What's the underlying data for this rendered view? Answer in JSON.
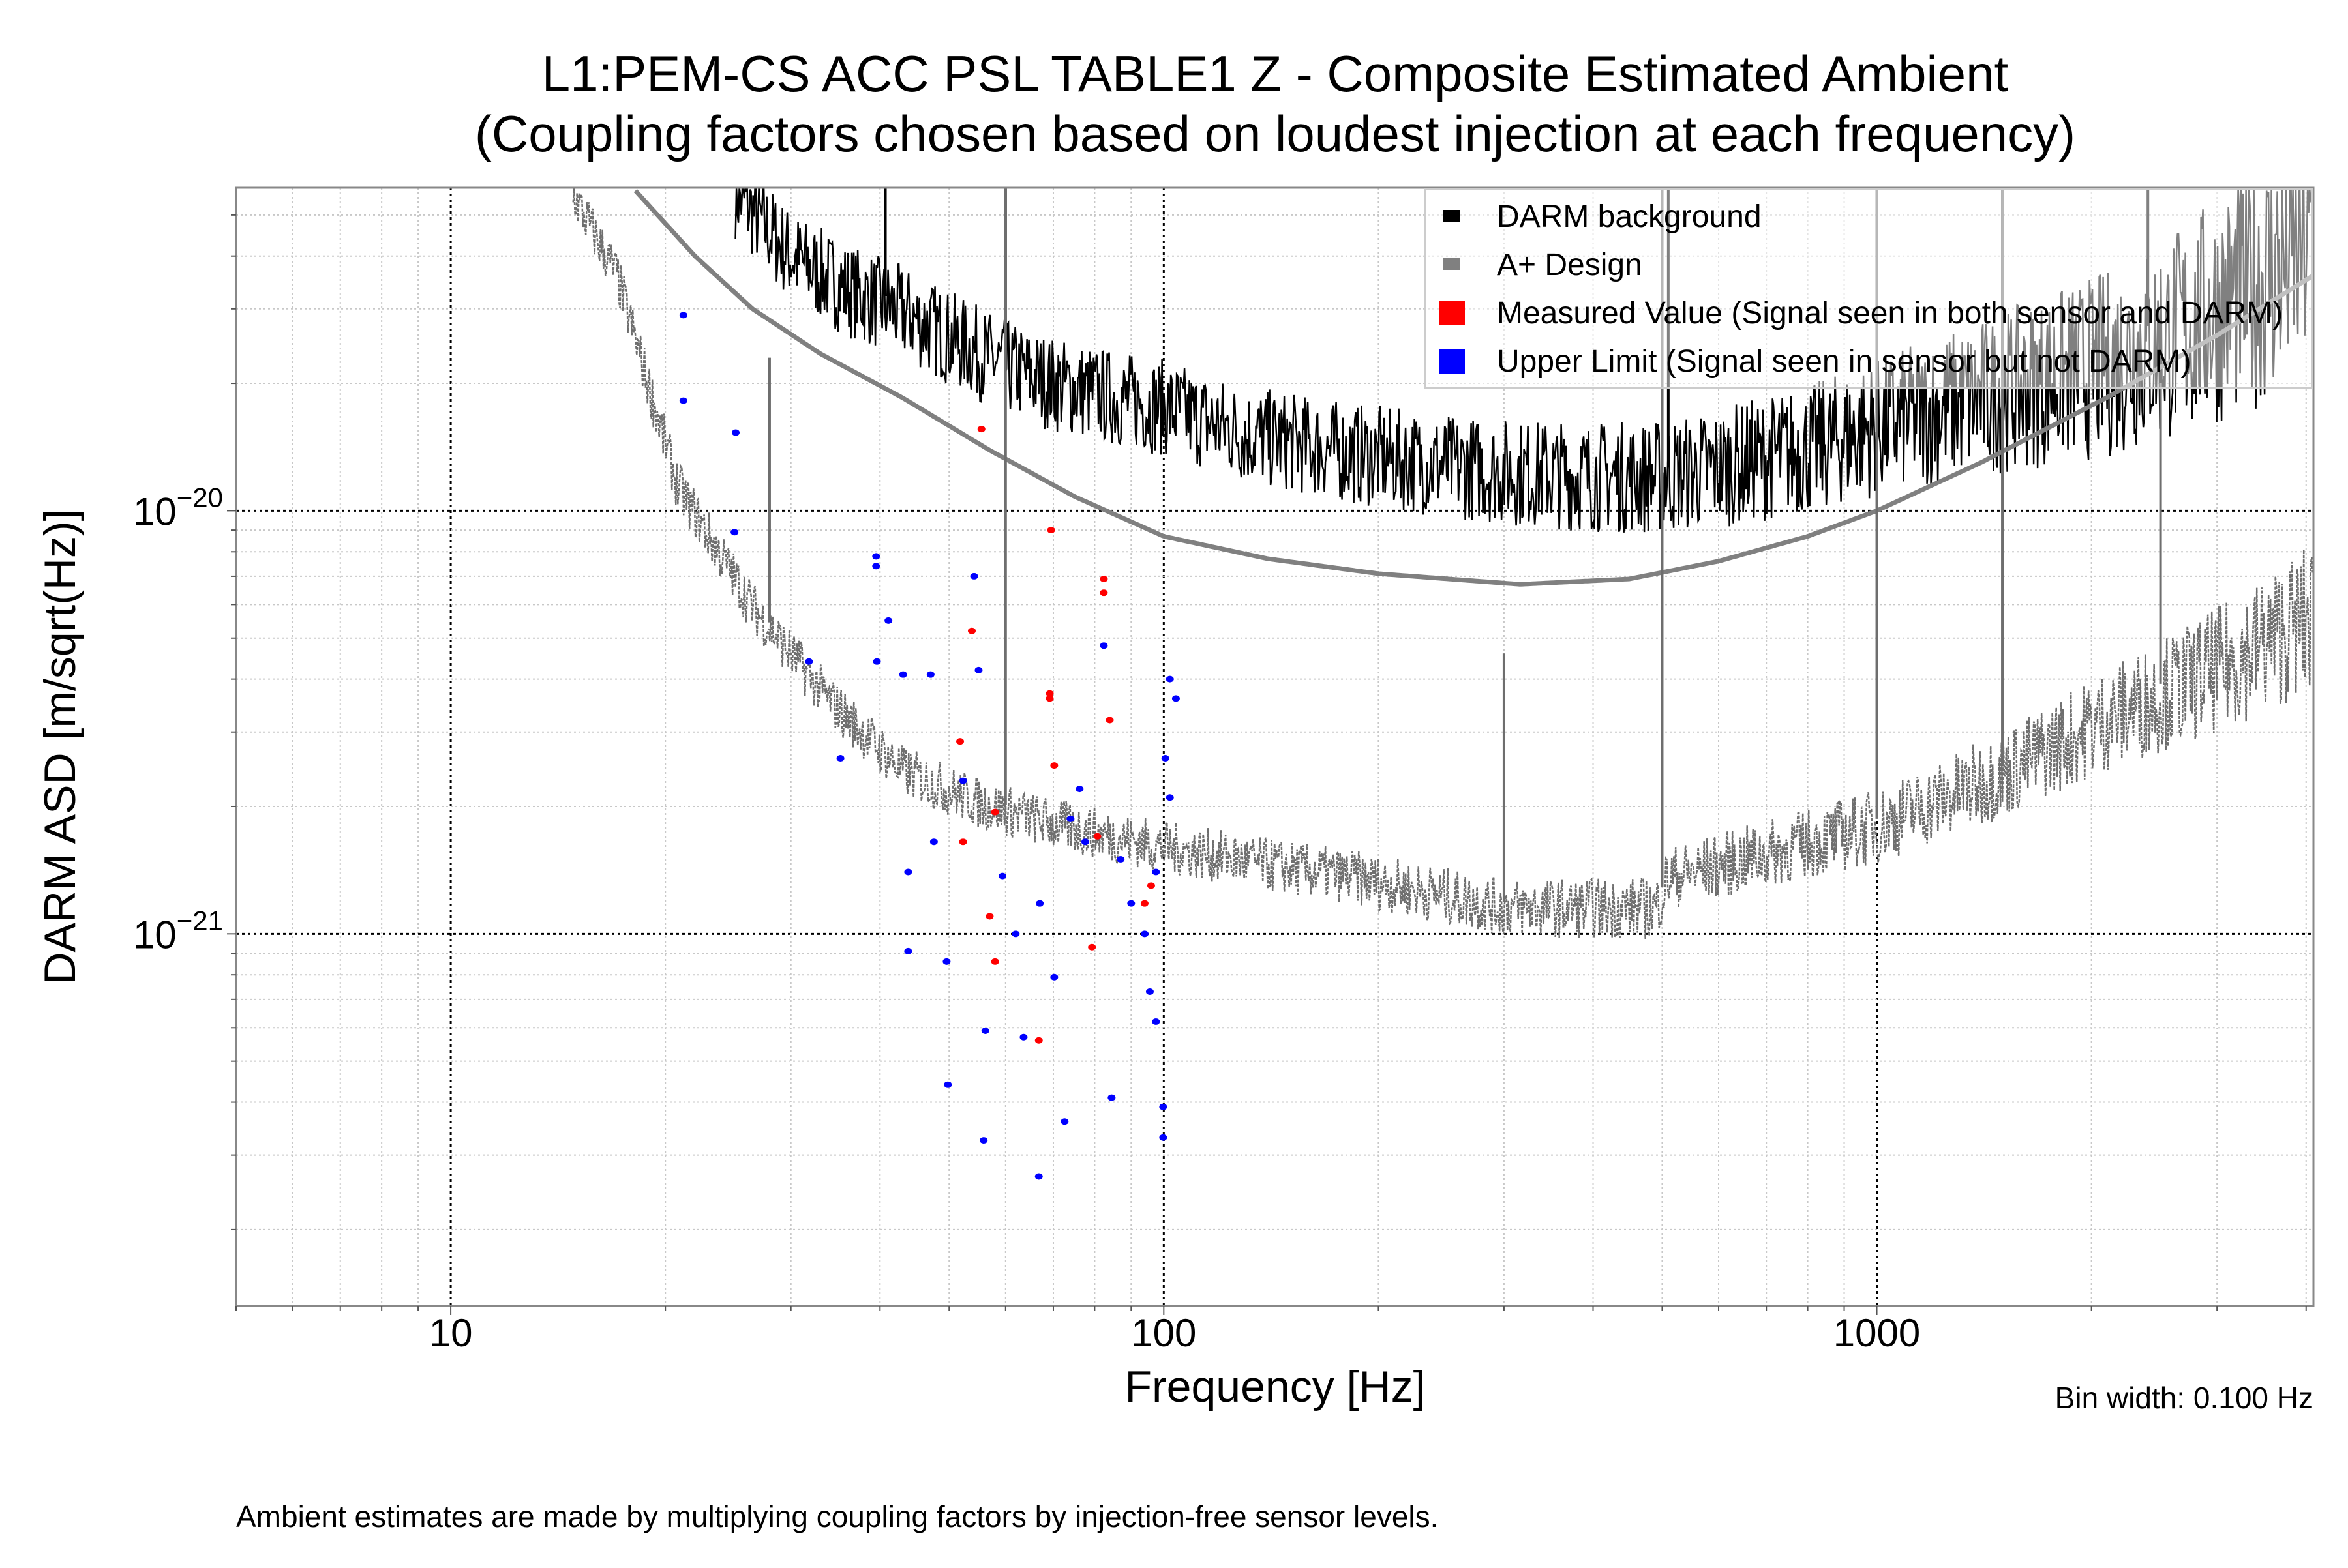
{
  "chart_data": {
    "type": "line",
    "title": [
      "L1:PEM-CS ACC PSL TABLE1 Z - Composite Estimated Ambient",
      "(Coupling factors chosen based on loudest injection at each frequency)"
    ],
    "xlabel": "Frequency [Hz]",
    "ylabel": "DARM ASD [m/sqrt(Hz)]",
    "xscale": "log",
    "yscale": "log",
    "xlim": [
      5,
      4096
    ],
    "ylim": [
      1.32e-22,
      5.8e-20
    ],
    "x_ticks": [
      {
        "value": 10,
        "label": "10"
      },
      {
        "value": 100,
        "label": "100"
      },
      {
        "value": 1000,
        "label": "1000"
      }
    ],
    "y_ticks": [
      {
        "value": 1e-20,
        "base": "10",
        "exp": "−20"
      },
      {
        "value": 1e-21,
        "base": "10",
        "exp": "−21"
      }
    ],
    "grid": true,
    "legend_position": "top-right",
    "annotations": {
      "bin_width": "Bin width: 0.100 Hz",
      "footnote": "Ambient estimates are made by multiplying coupling factors by injection-free sensor levels."
    },
    "colors": {
      "darm": "#000000",
      "aplus": "#808080",
      "ambient_gray": "#6e6e6e",
      "measured": "#ff0000",
      "upper_limit": "#0000ff"
    },
    "series": [
      {
        "name": "DARM background",
        "kind": "line",
        "color": "#000000",
        "x": [
          25,
          30,
          36,
          43,
          50,
          60,
          70,
          85,
          100,
          130,
          180,
          250,
          320,
          400,
          500,
          600,
          800,
          1000,
          1300,
          1600,
          2100,
          2700,
          3300,
          4096
        ],
        "y": [
          6e-20,
          4.2e-20,
          3.5e-20,
          3.1e-20,
          2.7e-20,
          2.3e-20,
          2.1e-20,
          1.95e-20,
          1.85e-20,
          1.6e-20,
          1.45e-20,
          1.35e-20,
          1.3e-20,
          1.28e-20,
          1.28e-20,
          1.35e-20,
          1.5e-20,
          1.7e-20,
          1.95e-20,
          2.15e-20,
          2.46e-20,
          3e-20,
          3.8e-20,
          5.1e-20
        ],
        "spikes": [
          [
            40.7,
            6e-20
          ],
          [
            60,
            6e-20
          ],
          [
            500,
            6e-20
          ],
          [
            510,
            6e-20
          ],
          [
            1000,
            6e-20
          ],
          [
            1500,
            6e-20
          ],
          [
            2400,
            6e-20
          ]
        ]
      },
      {
        "name": "A+ Design",
        "kind": "line",
        "color": "#808080",
        "x": [
          18,
          22,
          26.5,
          33,
          43,
          57,
          75,
          100,
          140,
          200,
          316,
          450,
          600,
          800,
          1000,
          1400,
          2100,
          3000,
          4096
        ],
        "y": [
          5.8e-20,
          4e-20,
          3e-20,
          2.35e-20,
          1.85e-20,
          1.39e-20,
          1.08e-20,
          8.7e-21,
          7.7e-21,
          7.1e-21,
          6.7e-21,
          6.9e-21,
          7.6e-21,
          8.7e-21,
          1e-20,
          1.3e-20,
          1.85e-20,
          2.6e-20,
          3.6e-20
        ]
      },
      {
        "kind": "line",
        "color": "#6e6e6e",
        "x": [
          14.8,
          17.1,
          20.8,
          26.5,
          33.8,
          43,
          55,
          70,
          100,
          140,
          185,
          300,
          490,
          510,
          700,
          1000,
          1500,
          2100,
          3000,
          4096
        ],
        "y": [
          5.8e-20,
          3.7e-20,
          1.18e-20,
          6.1e-21,
          3.7e-21,
          2.5e-21,
          2.1e-21,
          1.87e-21,
          1.65e-21,
          1.5e-21,
          1.4e-21,
          1.19e-21,
          1.19e-21,
          1.4e-21,
          1.6e-21,
          1.87e-21,
          2.5e-21,
          3.4e-21,
          4.5e-21,
          6.1e-21
        ],
        "spikes": [
          [
            28,
            2.3e-20
          ],
          [
            60,
            6e-20
          ],
          [
            300,
            4.6e-21
          ],
          [
            500,
            6e-20
          ],
          [
            1000,
            6e-20
          ],
          [
            1500,
            6e-20
          ],
          [
            2500,
            2e-20
          ]
        ]
      },
      {
        "name": "Measured Value (Signal seen in both sensor and DARM)",
        "kind": "scatter",
        "color": "#ff0000",
        "x": [
          55.5,
          69.5,
          82.4,
          82.4,
          53.8,
          69.2,
          69.2,
          51.8,
          58,
          52.3,
          57,
          58,
          66.8,
          84,
          70.2,
          79.3,
          96,
          80.7,
          94
        ],
        "y": [
          1.56e-20,
          9e-21,
          6.9e-21,
          6.4e-21,
          5.2e-21,
          3.7e-21,
          3.6e-21,
          2.85e-21,
          1.94e-21,
          1.65e-21,
          1.1e-21,
          8.6e-22,
          5.6e-22,
          3.2e-21,
          2.5e-21,
          9.3e-22,
          1.3e-21,
          1.7e-21,
          1.18e-21
        ]
      },
      {
        "name": "Upper Limit (Signal seen in sensor but not DARM)",
        "kind": "scatter",
        "color": "#0000ff",
        "x": [
          21.2,
          21.2,
          25.1,
          25,
          31.8,
          39.5,
          39.5,
          41.1,
          35.2,
          39.6,
          43.1,
          43.8,
          43.8,
          47.1,
          49.6,
          49.8,
          54.2,
          55,
          55.9,
          56.2,
          59.4,
          63.6,
          66.8,
          70.2,
          72.6,
          76.2,
          77.6,
          82.4,
          84.5,
          90,
          95.6,
          97.5,
          99.8,
          99.8,
          102,
          104,
          102,
          100.5,
          97.5,
          94,
          87,
          74,
          67,
          62,
          52.3,
          47.6
        ],
        "y": [
          2.9e-20,
          1.82e-20,
          1.53e-20,
          8.9e-21,
          4.4e-21,
          7.8e-21,
          7.4e-21,
          5.5e-21,
          2.6e-21,
          4.4e-21,
          4.1e-21,
          1.4e-21,
          9.1e-22,
          4.1e-21,
          8.6e-22,
          4.4e-22,
          7e-21,
          4.2e-21,
          3.25e-22,
          5.9e-22,
          1.37e-21,
          5.7e-22,
          2.67e-22,
          7.9e-22,
          3.6e-22,
          2.2e-21,
          1.65e-21,
          4.8e-21,
          4.1e-22,
          1.18e-21,
          7.3e-22,
          6.2e-22,
          3.3e-22,
          3.9e-22,
          4e-21,
          3.6e-21,
          2.1e-21,
          2.6e-21,
          1.4e-21,
          1e-21,
          1.5e-21,
          1.87e-21,
          1.18e-21,
          1e-21,
          2.3e-21,
          1.65e-21
        ]
      }
    ]
  }
}
